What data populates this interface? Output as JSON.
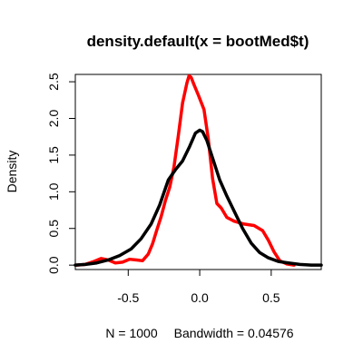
{
  "chart_data": {
    "type": "line",
    "title": "density.default(x = bootMed$t)",
    "ylabel": "Density",
    "xlabel_parts": {
      "n": "N = 1000",
      "bandwidth": "Bandwidth = 0.04576"
    },
    "xlim": [
      -0.87,
      0.85
    ],
    "ylim": [
      -0.06,
      2.6
    ],
    "x_ticks": [
      -0.5,
      0.0,
      0.5
    ],
    "x_tick_labels": [
      "-0.5",
      "0.0",
      "0.5"
    ],
    "y_ticks": [
      0.0,
      0.5,
      1.0,
      1.5,
      2.0,
      2.5
    ],
    "y_tick_labels": [
      "0.0",
      "0.5",
      "1.0",
      "1.5",
      "2.0",
      "2.5"
    ],
    "series": [
      {
        "color": "#ff0000",
        "points": [
          [
            -0.86,
            0.0
          ],
          [
            -0.8,
            0.01
          ],
          [
            -0.74,
            0.05
          ],
          [
            -0.69,
            0.09
          ],
          [
            -0.64,
            0.07
          ],
          [
            -0.59,
            0.03
          ],
          [
            -0.54,
            0.04
          ],
          [
            -0.49,
            0.08
          ],
          [
            -0.44,
            0.07
          ],
          [
            -0.4,
            0.06
          ],
          [
            -0.36,
            0.15
          ],
          [
            -0.33,
            0.29
          ],
          [
            -0.3,
            0.48
          ],
          [
            -0.27,
            0.66
          ],
          [
            -0.24,
            0.88
          ],
          [
            -0.21,
            1.06
          ],
          [
            -0.18,
            1.34
          ],
          [
            -0.15,
            1.76
          ],
          [
            -0.12,
            2.21
          ],
          [
            -0.09,
            2.48
          ],
          [
            -0.075,
            2.58
          ],
          [
            -0.06,
            2.56
          ],
          [
            -0.04,
            2.46
          ],
          [
            -0.01,
            2.32
          ],
          [
            0.03,
            2.12
          ],
          [
            0.06,
            1.72
          ],
          [
            0.09,
            1.18
          ],
          [
            0.12,
            0.84
          ],
          [
            0.15,
            0.78
          ],
          [
            0.19,
            0.65
          ],
          [
            0.24,
            0.6
          ],
          [
            0.31,
            0.56
          ],
          [
            0.38,
            0.54
          ],
          [
            0.44,
            0.47
          ],
          [
            0.48,
            0.34
          ],
          [
            0.52,
            0.18
          ],
          [
            0.56,
            0.06
          ],
          [
            0.61,
            0.015
          ],
          [
            0.66,
            0.0
          ]
        ]
      },
      {
        "color": "#000000",
        "points": [
          [
            -0.87,
            0.0
          ],
          [
            -0.8,
            0.01
          ],
          [
            -0.72,
            0.03
          ],
          [
            -0.64,
            0.07
          ],
          [
            -0.56,
            0.13
          ],
          [
            -0.48,
            0.22
          ],
          [
            -0.41,
            0.36
          ],
          [
            -0.34,
            0.56
          ],
          [
            -0.28,
            0.82
          ],
          [
            -0.22,
            1.16
          ],
          [
            -0.17,
            1.3
          ],
          [
            -0.12,
            1.42
          ],
          [
            -0.07,
            1.62
          ],
          [
            -0.03,
            1.8
          ],
          [
            0.0,
            1.84
          ],
          [
            0.02,
            1.82
          ],
          [
            0.05,
            1.7
          ],
          [
            0.09,
            1.46
          ],
          [
            0.14,
            1.16
          ],
          [
            0.19,
            0.94
          ],
          [
            0.24,
            0.74
          ],
          [
            0.3,
            0.5
          ],
          [
            0.36,
            0.3
          ],
          [
            0.42,
            0.17
          ],
          [
            0.48,
            0.1
          ],
          [
            0.55,
            0.05
          ],
          [
            0.62,
            0.03
          ],
          [
            0.7,
            0.01
          ],
          [
            0.78,
            0.0
          ],
          [
            0.85,
            0.0
          ]
        ]
      }
    ]
  }
}
